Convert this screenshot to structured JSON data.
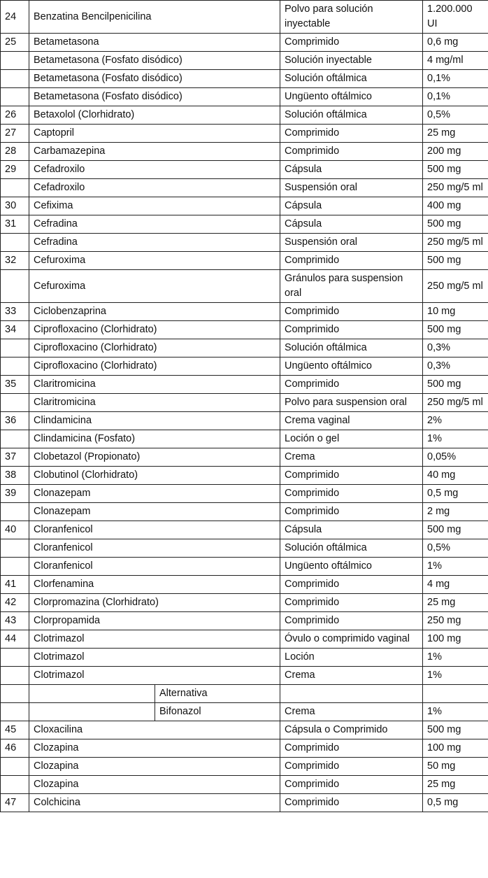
{
  "table": {
    "rows": [
      {
        "number": "24",
        "name": "Benzatina Bencilpenicilina",
        "form": "Polvo para solución inyectable",
        "dose": "1.200.000 UI"
      },
      {
        "number": "25",
        "name": "Betametasona",
        "form": "Comprimido",
        "dose": "0,6 mg"
      },
      {
        "name": "Betametasona (Fosfato disódico)",
        "form": "Solución inyectable",
        "dose": "4 mg/ml"
      },
      {
        "name": "Betametasona (Fosfato disódico)",
        "form": "Solución oftálmica",
        "dose": "0,1%"
      },
      {
        "name": "Betametasona (Fosfato disódico)",
        "form": "Ungüento oftálmico",
        "dose": "0,1%"
      },
      {
        "number": "26",
        "name": "Betaxolol (Clorhidrato)",
        "form": "Solución oftálmica",
        "dose": "0,5%"
      },
      {
        "number": "27",
        "name": "Captopril",
        "form": "Comprimido",
        "dose": "25 mg"
      },
      {
        "number": "28",
        "name": "Carbamazepina",
        "form": "Comprimido",
        "dose": "200 mg"
      },
      {
        "number": "29",
        "name": "Cefadroxilo",
        "form": "Cápsula",
        "dose": "500 mg"
      },
      {
        "name": "Cefadroxilo",
        "form": "Suspensión oral",
        "dose": "250 mg/5 ml"
      },
      {
        "number": "30",
        "name": "Cefixima",
        "form": "Cápsula",
        "dose": "400 mg"
      },
      {
        "number": "31",
        "name": "Cefradina",
        "form": "Cápsula",
        "dose": "500 mg"
      },
      {
        "name": "Cefradina",
        "form": "Suspensión oral",
        "dose": "250 mg/5 ml"
      },
      {
        "number": "32",
        "name": "Cefuroxima",
        "form": "Comprimido",
        "dose": "500 mg"
      },
      {
        "name": "Cefuroxima",
        "form": "Gránulos para suspension oral",
        "dose": "250 mg/5 ml"
      },
      {
        "number": "33",
        "name": "Ciclobenzaprina",
        "form": "Comprimido",
        "dose": "10 mg"
      },
      {
        "number": "34",
        "name": "Ciprofloxacino (Clorhidrato)",
        "form": "Comprimido",
        "dose": "500 mg"
      },
      {
        "name": "Ciprofloxacino (Clorhidrato)",
        "form": "Solución oftálmica",
        "dose": "0,3%"
      },
      {
        "name": "Ciprofloxacino (Clorhidrato)",
        "form": "Ungüento oftálmico",
        "dose": "0,3%"
      },
      {
        "number": "35",
        "name": "Claritromicina",
        "form": "Comprimido",
        "dose": "500 mg"
      },
      {
        "name": "Claritromicina",
        "form": "Polvo para suspension oral",
        "dose": "250 mg/5 ml"
      },
      {
        "number": "36",
        "name": "Clindamicina",
        "form": "Crema vaginal",
        "dose": "2%"
      },
      {
        "name": "Clindamicina (Fosfato)",
        "form": "Loción o gel",
        "dose": "1%"
      },
      {
        "number": "37",
        "name": "Clobetazol (Propionato)",
        "form": "Crema",
        "dose": "0,05%"
      },
      {
        "number": "38",
        "name": "Clobutinol (Clorhidrato)",
        "form": "Comprimido",
        "dose": "40 mg"
      },
      {
        "number": "39",
        "name": "Clonazepam",
        "form": "Comprimido",
        "dose": "0,5 mg"
      },
      {
        "name": "Clonazepam",
        "form": "Comprimido",
        "dose": "2 mg"
      },
      {
        "number": "40",
        "name": "Cloranfenicol",
        "form": "Cápsula",
        "dose": "500 mg"
      },
      {
        "name": "Cloranfenicol",
        "form": "Solución oftálmica",
        "dose": "0,5%"
      },
      {
        "name": "Cloranfenicol",
        "form": "Ungüento oftálmico",
        "dose": "1%"
      },
      {
        "number": "41",
        "name": "Clorfenamina",
        "form": "Comprimido",
        "dose": "4 mg"
      },
      {
        "number": "42",
        "name": "Clorpromazina (Clorhidrato)",
        "form": "Comprimido",
        "dose": "25 mg"
      },
      {
        "number": "43",
        "name": "Clorpropamida",
        "form": "Comprimido",
        "dose": "250 mg"
      },
      {
        "number": "44",
        "name": "Clotrimazol",
        "form": "Óvulo o comprimido vaginal",
        "dose": "100 mg"
      },
      {
        "name": "Clotrimazol",
        "form": "Loción",
        "dose": "1%"
      },
      {
        "name": "Clotrimazol",
        "form": "Crema",
        "dose": "1%"
      },
      {
        "sub": "Alternativa"
      },
      {
        "sub": "Bifonazol",
        "form": "Crema",
        "dose": "1%"
      },
      {
        "number": "45",
        "name": "Cloxacilina",
        "form": "Cápsula o Comprimido",
        "dose": "500 mg"
      },
      {
        "number": "46",
        "name": "Clozapina",
        "form": "Comprimido",
        "dose": "100 mg"
      },
      {
        "name": "Clozapina",
        "form": "Comprimido",
        "dose": "50 mg"
      },
      {
        "name": "Clozapina",
        "form": "Comprimido",
        "dose": "25 mg"
      },
      {
        "number": "47",
        "name": "Colchicina",
        "form": "Comprimido",
        "dose": "0,5 mg"
      }
    ]
  }
}
